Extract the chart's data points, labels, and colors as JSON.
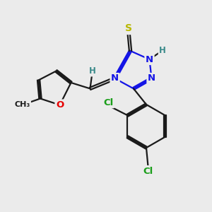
{
  "bg_color": "#ebebeb",
  "bond_color": "#1a1a1a",
  "bond_width": 1.6,
  "dbo": 0.055,
  "atom_colors": {
    "C": "#1a1a1a",
    "N": "#1414e6",
    "O": "#e60000",
    "S": "#b8b800",
    "Cl": "#1a9e1a",
    "H": "#3a8a8a"
  },
  "fs": 9.5,
  "fs_small": 8.5
}
